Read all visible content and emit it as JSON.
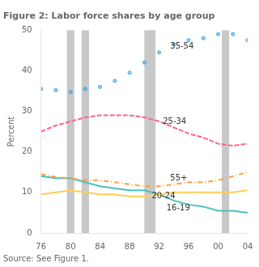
{
  "chart_data": {
    "type": "line",
    "title": "Figure 2: Labor force shares by age group",
    "ylabel": "Percent",
    "source": "Source: See Figure 1.",
    "x": [
      76,
      78,
      80,
      82,
      84,
      86,
      88,
      90,
      92,
      94,
      96,
      98,
      100,
      102,
      104
    ],
    "series": [
      {
        "name": "35-54",
        "values": [
          35.5,
          35.2,
          34.8,
          35.5,
          36.0,
          37.5,
          39.5,
          42.0,
          44.5,
          46.5,
          47.5,
          48.0,
          49.0,
          49.0,
          47.5
        ],
        "line_style": "none",
        "marker": "dot"
      },
      {
        "name": "25-34",
        "values": [
          25.0,
          26.5,
          27.5,
          28.5,
          29.0,
          29.0,
          29.0,
          28.5,
          27.5,
          26.0,
          24.5,
          23.5,
          22.0,
          21.5,
          22.0
        ],
        "line_style": "dashed"
      },
      {
        "name": "55+",
        "values": [
          14.5,
          13.8,
          13.5,
          13.0,
          13.0,
          12.5,
          12.0,
          11.5,
          11.5,
          12.0,
          12.5,
          12.5,
          13.0,
          14.0,
          15.0
        ],
        "line_style": "dashdot"
      },
      {
        "name": "20-24",
        "values": [
          9.5,
          10.0,
          10.5,
          10.0,
          9.5,
          9.5,
          9.0,
          9.0,
          9.5,
          10.0,
          10.0,
          10.0,
          10.0,
          10.0,
          10.5
        ],
        "line_style": "solid"
      },
      {
        "name": "16-19",
        "values": [
          14.0,
          13.5,
          13.5,
          12.5,
          11.5,
          11.0,
          10.5,
          10.5,
          9.5,
          8.0,
          7.0,
          6.5,
          5.5,
          5.5,
          5.0
        ],
        "line_style": "solid"
      }
    ],
    "annotations": [
      {
        "text": "35-54",
        "x": 93.5,
        "y": 46.0
      },
      {
        "text": "25-34",
        "x": 92.5,
        "y": 27.5
      },
      {
        "text": "55+",
        "x": 93.5,
        "y": 13.5
      },
      {
        "text": "20-24",
        "x": 91.0,
        "y": 9.0
      },
      {
        "text": "16-19",
        "x": 93.0,
        "y": 6.0
      }
    ],
    "bands": [
      [
        79.5,
        80.5
      ],
      [
        81.5,
        82.5
      ],
      [
        90.0,
        91.5
      ],
      [
        100.5,
        101.5
      ]
    ],
    "band_color": "#c8c8c8",
    "xlim": [
      76,
      104
    ],
    "xticks": [
      76,
      80,
      84,
      88,
      92,
      96,
      {
        "value": 100,
        "label": "00"
      },
      {
        "value": 104,
        "label": "04"
      }
    ],
    "ylim": [
      0,
      50
    ],
    "yticks": [
      0,
      10,
      20,
      30,
      40,
      50
    ],
    "grid": false
  }
}
